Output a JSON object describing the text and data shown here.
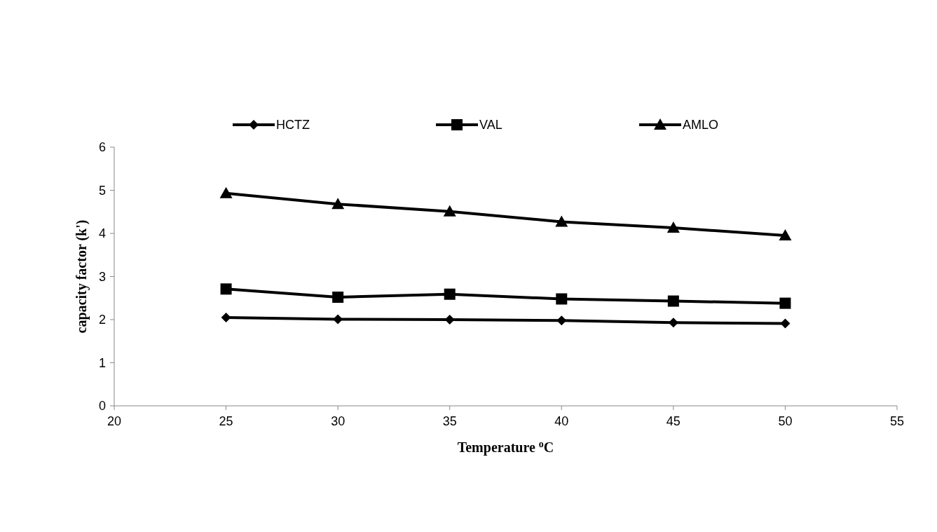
{
  "chart_data": {
    "type": "line",
    "xlabel": "Temperature $^{o}$C",
    "ylabel": "capacity factor (k')",
    "x": [
      25,
      30,
      35,
      40,
      45,
      50
    ],
    "series": [
      {
        "name": "HCTZ",
        "color": "#000000",
        "marker": "diamond",
        "values": [
          2.05,
          2.01,
          2.0,
          1.98,
          1.93,
          1.91
        ]
      },
      {
        "name": "VAL",
        "color": "#000000",
        "marker": "square",
        "values": [
          2.71,
          2.52,
          2.59,
          2.48,
          2.43,
          2.38
        ]
      },
      {
        "name": "AMLO",
        "color": "#000000",
        "marker": "triangle",
        "values": [
          4.93,
          4.68,
          4.51,
          4.27,
          4.13,
          3.95
        ]
      }
    ],
    "xlim": [
      20,
      55
    ],
    "xticks": [
      20,
      25,
      30,
      35,
      40,
      45,
      50,
      55
    ],
    "ylim": [
      0,
      6
    ],
    "yticks": [
      0,
      1,
      2,
      3,
      4,
      5,
      6
    ],
    "grid": false,
    "legend": "top",
    "line_style": "solid"
  }
}
